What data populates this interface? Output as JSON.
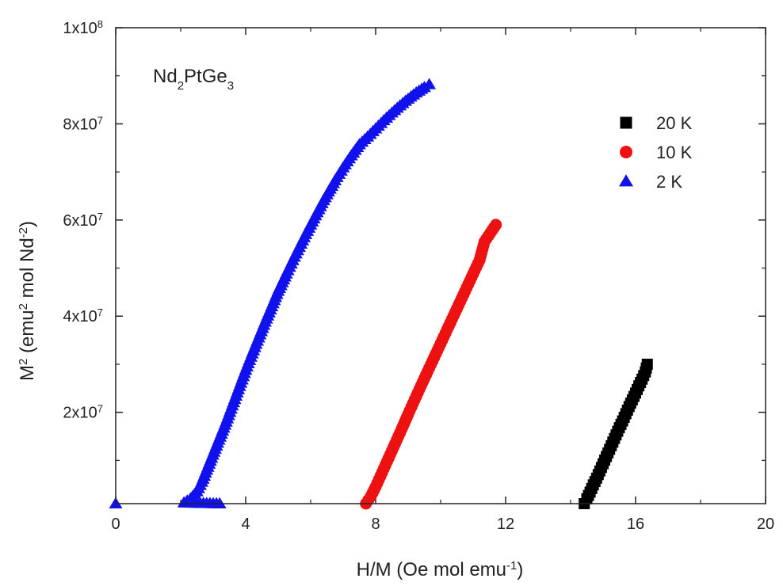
{
  "chart_data": {
    "type": "scatter",
    "xlabel": {
      "main": "H/M (Oe mol emu",
      "sup": "-1",
      "tail": ")"
    },
    "ylabel": {
      "p1": "M",
      "sup1": "2",
      "p2": " (emu",
      "sup2": "2",
      "p3": " mol Nd",
      "sup3": "-2",
      "p4": ")"
    },
    "annotation": {
      "p1": "Nd",
      "sub1": "2",
      "p2": "PtGe",
      "sub2": "3"
    },
    "xlim": [
      0,
      20
    ],
    "ylim": [
      1000000,
      100000000
    ],
    "xticks": [
      0,
      4,
      8,
      12,
      16,
      20
    ],
    "yticks": [
      {
        "value": 20000000,
        "base": "2x10",
        "exp": "7"
      },
      {
        "value": 40000000,
        "base": "4x10",
        "exp": "7"
      },
      {
        "value": 60000000,
        "base": "6x10",
        "exp": "7"
      },
      {
        "value": 80000000,
        "base": "8x10",
        "exp": "7"
      },
      {
        "value": 100000000,
        "base": "1x10",
        "exp": "8"
      }
    ],
    "grid": false,
    "legend_position": "top-right",
    "series": [
      {
        "name": "20 K",
        "color": "#000000",
        "marker": "square",
        "x": [
          14.42,
          14.5,
          14.6,
          14.7,
          14.8,
          14.9,
          15.0,
          15.1,
          15.2,
          15.3,
          15.4,
          15.5,
          15.6,
          15.7,
          15.8,
          15.9,
          16.0,
          16.1,
          16.2,
          16.3,
          16.36
        ],
        "y": [
          1000000,
          2000000,
          3400000,
          4900000,
          6300000,
          7800000,
          9300000,
          10800000,
          12300000,
          13800000,
          15300000,
          16800000,
          18200000,
          19700000,
          21200000,
          22600000,
          24000000,
          25500000,
          26900000,
          28400000,
          30000000
        ]
      },
      {
        "name": "10 K",
        "color": "#ee1111",
        "marker": "circle",
        "x": [
          7.7,
          7.85,
          8.0,
          8.2,
          8.4,
          8.6,
          8.8,
          9.0,
          9.2,
          9.4,
          9.6,
          9.8,
          10.0,
          10.2,
          10.4,
          10.6,
          10.8,
          11.0,
          11.2,
          11.35,
          11.7
        ],
        "y": [
          1000000,
          2500000,
          4500000,
          7500000,
          10500000,
          13500000,
          16500000,
          19600000,
          22600000,
          25600000,
          28500000,
          31400000,
          34300000,
          37200000,
          40100000,
          43000000,
          45900000,
          48800000,
          51700000,
          55500000,
          59000000
        ]
      },
      {
        "name": "2 K",
        "color": "#1111ee",
        "marker": "triangle",
        "x": [
          0.0,
          3.2,
          2.1,
          2.3,
          2.5,
          2.65,
          2.8,
          2.95,
          3.1,
          3.25,
          3.4,
          3.55,
          3.7,
          3.85,
          4.0,
          4.2,
          4.4,
          4.6,
          4.8,
          5.0,
          5.25,
          5.5,
          5.75,
          6.0,
          6.25,
          6.5,
          6.75,
          7.0,
          7.25,
          7.5,
          7.75,
          8.0,
          8.25,
          8.5,
          8.75,
          9.0,
          9.25,
          9.5,
          9.65
        ],
        "y": [
          1000000,
          1000000,
          1200000,
          2000000,
          3500000,
          5500000,
          8000000,
          10500000,
          13000000,
          15500000,
          18000000,
          20700000,
          23400000,
          26100000,
          28800000,
          32200000,
          35500000,
          38800000,
          42000000,
          45200000,
          48800000,
          52300000,
          55700000,
          59000000,
          62200000,
          65300000,
          68200000,
          70900000,
          73400000,
          75700000,
          77300000,
          79000000,
          80700000,
          82300000,
          83800000,
          85200000,
          86500000,
          87600000,
          88200000
        ]
      }
    ]
  }
}
